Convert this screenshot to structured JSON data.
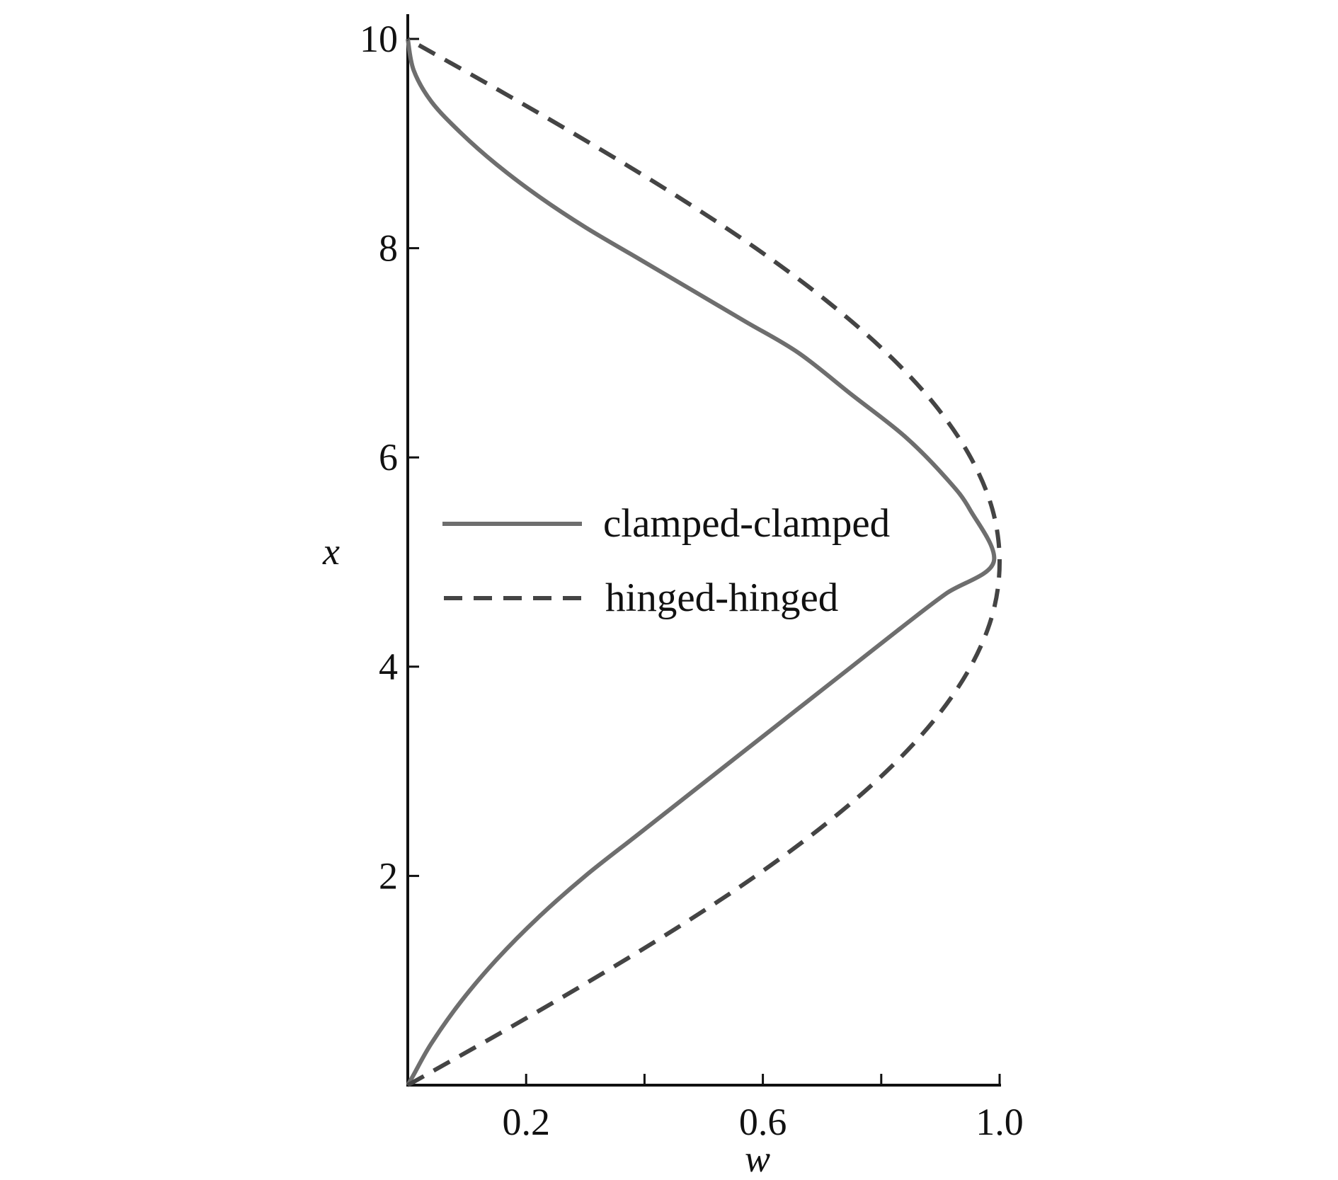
{
  "chart_data": {
    "type": "line",
    "title": "",
    "xlabel": "w",
    "ylabel": "x",
    "xlim": [
      0,
      1.0
    ],
    "ylim": [
      0,
      10
    ],
    "x_ticks_major": [
      0.2,
      0.6,
      1.0
    ],
    "x_ticks_minor": [
      0.4,
      0.8
    ],
    "x_tick_labels": [
      "0.2",
      "0.6",
      "1.0"
    ],
    "y_ticks": [
      2,
      4,
      6,
      8,
      10
    ],
    "y_tick_labels": [
      "2",
      "4",
      "6",
      "8",
      "10"
    ],
    "grid": false,
    "legend_position": "center",
    "series": [
      {
        "name": "clamped-clamped",
        "style": "solid",
        "color": "#6e6e6e",
        "points": [
          [
            0.0,
            0.0
          ],
          [
            0.01,
            0.1
          ],
          [
            0.04,
            0.4
          ],
          [
            0.09,
            0.8
          ],
          [
            0.15,
            1.2
          ],
          [
            0.22,
            1.6
          ],
          [
            0.3,
            2.0
          ],
          [
            0.39,
            2.4
          ],
          [
            0.48,
            2.8
          ],
          [
            0.57,
            3.2
          ],
          [
            0.66,
            3.6
          ],
          [
            0.75,
            4.0
          ],
          [
            0.84,
            4.4
          ],
          [
            0.91,
            4.7
          ],
          [
            0.99,
            5.0
          ],
          [
            0.95,
            5.5
          ],
          [
            0.91,
            5.8
          ],
          [
            0.84,
            6.2
          ],
          [
            0.75,
            6.6
          ],
          [
            0.66,
            7.0
          ],
          [
            0.57,
            7.3
          ],
          [
            0.48,
            7.6
          ],
          [
            0.39,
            7.9
          ],
          [
            0.3,
            8.2
          ],
          [
            0.22,
            8.5
          ],
          [
            0.15,
            8.8
          ],
          [
            0.09,
            9.1
          ],
          [
            0.04,
            9.4
          ],
          [
            0.01,
            9.7
          ],
          [
            0.0,
            10.0
          ]
        ]
      },
      {
        "name": "hinged-hinged",
        "style": "dashed",
        "color": "#444444",
        "points": [
          [
            0.0,
            0.0
          ],
          [
            0.157,
            0.5
          ],
          [
            0.309,
            1.0
          ],
          [
            0.454,
            1.5
          ],
          [
            0.588,
            2.0
          ],
          [
            0.707,
            2.5
          ],
          [
            0.809,
            3.0
          ],
          [
            0.891,
            3.5
          ],
          [
            0.951,
            4.0
          ],
          [
            0.988,
            4.5
          ],
          [
            1.0,
            5.0
          ],
          [
            0.988,
            5.5
          ],
          [
            0.951,
            6.0
          ],
          [
            0.891,
            6.5
          ],
          [
            0.809,
            7.0
          ],
          [
            0.707,
            7.5
          ],
          [
            0.588,
            8.0
          ],
          [
            0.454,
            8.5
          ],
          [
            0.309,
            9.0
          ],
          [
            0.157,
            9.5
          ],
          [
            0.0,
            10.0
          ]
        ]
      }
    ]
  }
}
